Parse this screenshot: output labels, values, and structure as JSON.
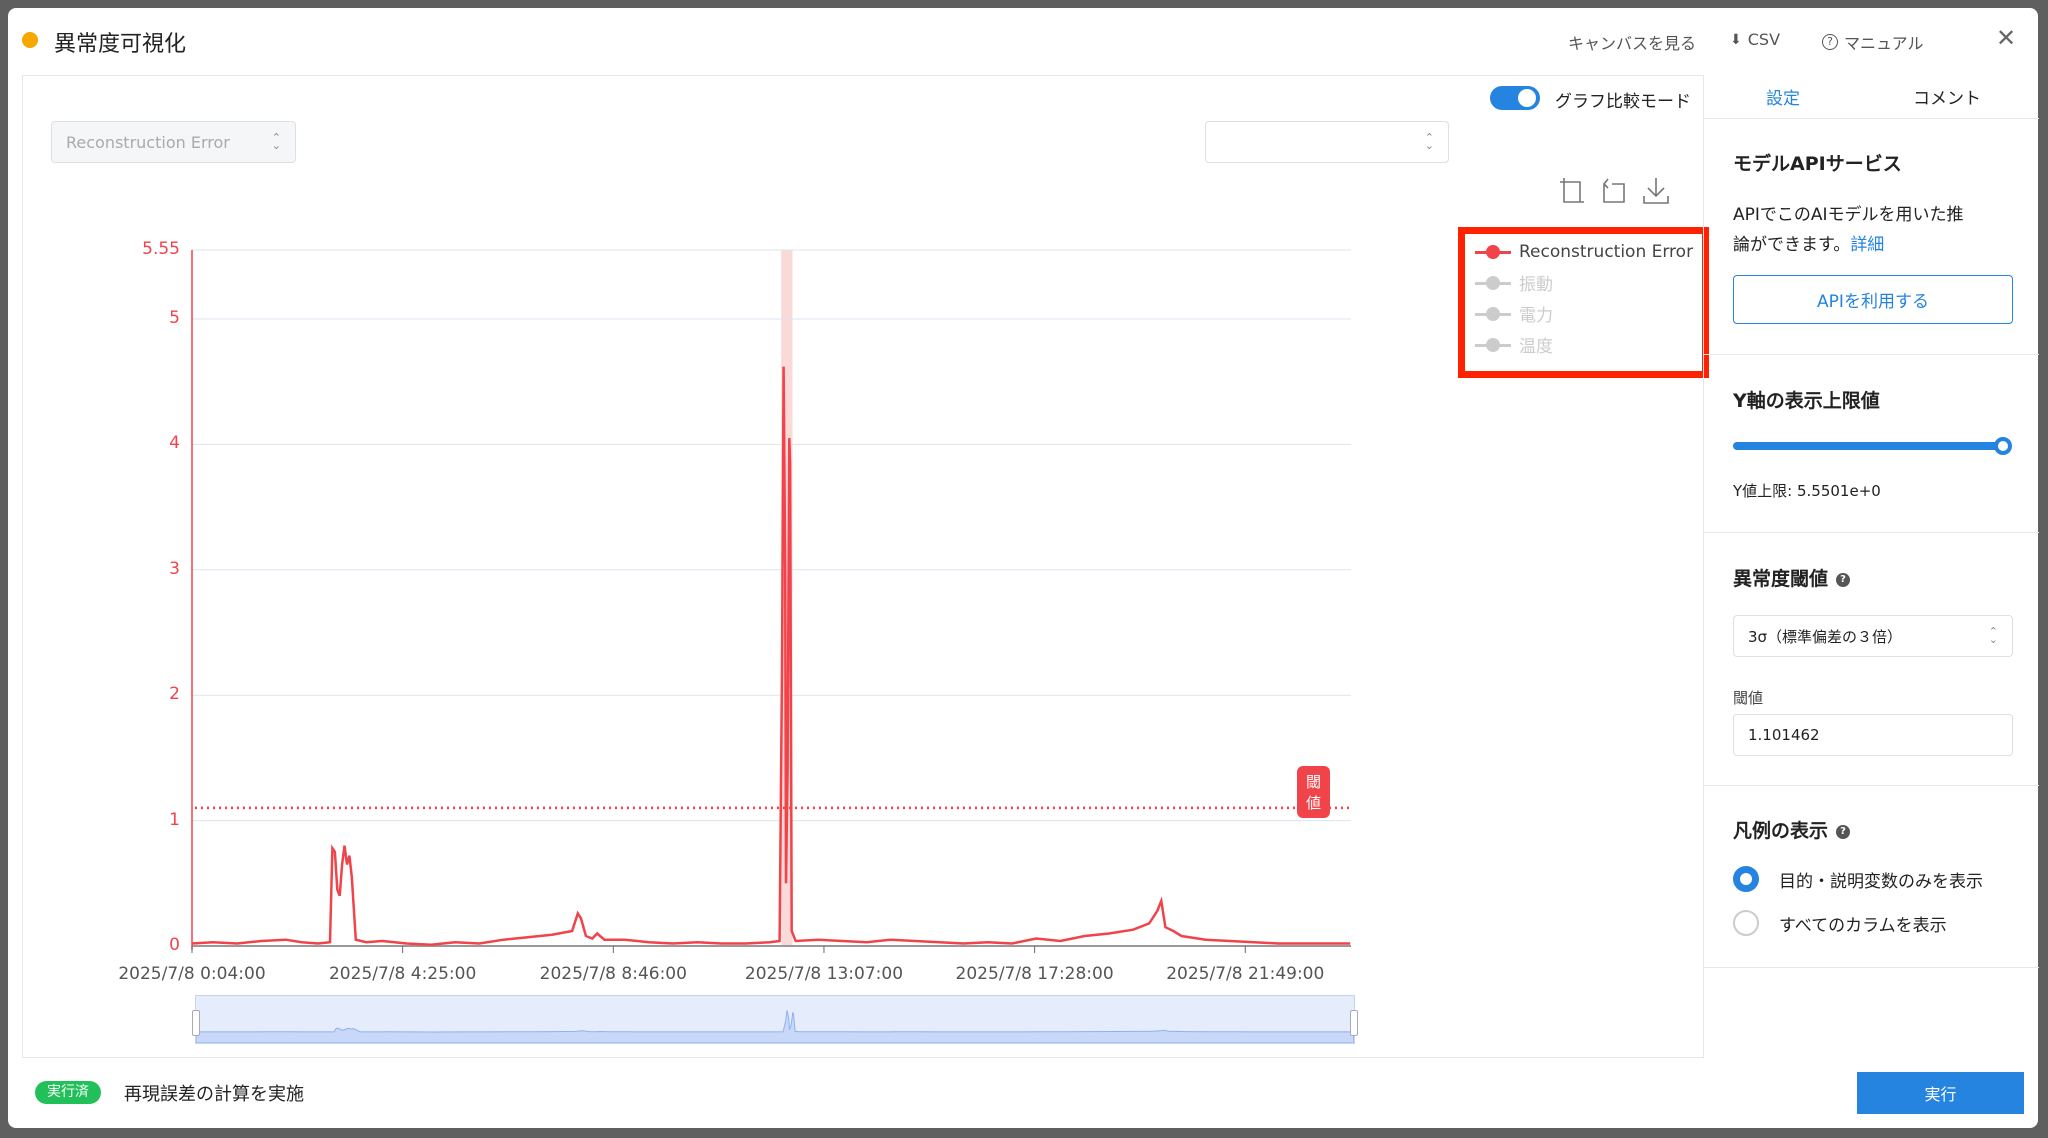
{
  "header": {
    "title": "異常度可視化",
    "status_color": "#f5a800",
    "links": {
      "canvas": "キャンバスを見る",
      "csv": "CSV",
      "manual": "マニュアル"
    }
  },
  "chart_controls": {
    "series_select": "Reconstruction Error",
    "compare_select": "",
    "compare_mode_label": "グラフ比較モード",
    "compare_mode_on": true
  },
  "legend": {
    "items": [
      {
        "label": "Reconstruction Error",
        "active": true,
        "color": "#f0434a"
      },
      {
        "label": "振動",
        "active": false,
        "color": "#cccccc"
      },
      {
        "label": "電力",
        "active": false,
        "color": "#cccccc"
      },
      {
        "label": "温度",
        "active": false,
        "color": "#cccccc"
      }
    ],
    "highlight_color": "#ff2200"
  },
  "chart_data": {
    "type": "line",
    "title": "",
    "xlabel": "",
    "ylabel": "",
    "date": "2025/7/8",
    "ylim": [
      0,
      5.55
    ],
    "yticks": [
      "0",
      "1",
      "2",
      "3",
      "4",
      "5",
      "5.55"
    ],
    "xtick_labels": [
      "2025/7/8 0:04:00",
      "2025/7/8 4:25:00",
      "2025/7/8 8:46:00",
      "2025/7/8 13:07:00",
      "2025/7/8 17:28:00",
      "2025/7/8 21:49:00"
    ],
    "xrange": [
      "00:04",
      "23:59"
    ],
    "grid": true,
    "threshold": {
      "value": 1.101462,
      "label": "閾値"
    },
    "anomaly_ranges": [
      [
        "12:14",
        "12:28"
      ]
    ],
    "series": [
      {
        "name": "Reconstruction Error",
        "color": "#f0434a",
        "points": [
          [
            "00:04",
            0.02
          ],
          [
            "00:30",
            0.03
          ],
          [
            "01:00",
            0.02
          ],
          [
            "01:30",
            0.04
          ],
          [
            "02:00",
            0.05
          ],
          [
            "02:20",
            0.03
          ],
          [
            "02:40",
            0.02
          ],
          [
            "02:55",
            0.03
          ],
          [
            "02:58",
            0.78
          ],
          [
            "03:01",
            0.75
          ],
          [
            "03:04",
            0.45
          ],
          [
            "03:07",
            0.4
          ],
          [
            "03:10",
            0.65
          ],
          [
            "03:13",
            0.8
          ],
          [
            "03:16",
            0.65
          ],
          [
            "03:19",
            0.72
          ],
          [
            "03:22",
            0.55
          ],
          [
            "03:27",
            0.05
          ],
          [
            "03:40",
            0.03
          ],
          [
            "04:00",
            0.04
          ],
          [
            "04:30",
            0.02
          ],
          [
            "05:00",
            0.01
          ],
          [
            "05:30",
            0.03
          ],
          [
            "06:00",
            0.02
          ],
          [
            "06:30",
            0.05
          ],
          [
            "07:00",
            0.07
          ],
          [
            "07:30",
            0.09
          ],
          [
            "07:55",
            0.12
          ],
          [
            "08:02",
            0.26
          ],
          [
            "08:06",
            0.22
          ],
          [
            "08:12",
            0.08
          ],
          [
            "08:20",
            0.06
          ],
          [
            "08:26",
            0.1
          ],
          [
            "08:35",
            0.05
          ],
          [
            "09:00",
            0.05
          ],
          [
            "09:30",
            0.03
          ],
          [
            "10:00",
            0.02
          ],
          [
            "10:30",
            0.03
          ],
          [
            "11:00",
            0.02
          ],
          [
            "11:30",
            0.02
          ],
          [
            "12:00",
            0.03
          ],
          [
            "12:12",
            0.04
          ],
          [
            "12:15",
            2.2
          ],
          [
            "12:17",
            4.62
          ],
          [
            "12:19",
            3.0
          ],
          [
            "12:20",
            0.5
          ],
          [
            "12:22",
            1.4
          ],
          [
            "12:24",
            4.05
          ],
          [
            "12:25",
            3.85
          ],
          [
            "12:27",
            0.12
          ],
          [
            "12:32",
            0.04
          ],
          [
            "13:00",
            0.05
          ],
          [
            "13:30",
            0.04
          ],
          [
            "14:00",
            0.03
          ],
          [
            "14:30",
            0.05
          ],
          [
            "15:00",
            0.04
          ],
          [
            "15:30",
            0.03
          ],
          [
            "16:00",
            0.02
          ],
          [
            "16:30",
            0.03
          ],
          [
            "17:00",
            0.02
          ],
          [
            "17:30",
            0.06
          ],
          [
            "18:00",
            0.04
          ],
          [
            "18:30",
            0.08
          ],
          [
            "19:00",
            0.1
          ],
          [
            "19:30",
            0.13
          ],
          [
            "19:50",
            0.18
          ],
          [
            "20:00",
            0.28
          ],
          [
            "20:05",
            0.36
          ],
          [
            "20:10",
            0.15
          ],
          [
            "20:20",
            0.12
          ],
          [
            "20:30",
            0.08
          ],
          [
            "21:00",
            0.05
          ],
          [
            "21:30",
            0.04
          ],
          [
            "22:00",
            0.03
          ],
          [
            "22:30",
            0.02
          ],
          [
            "23:00",
            0.02
          ],
          [
            "23:30",
            0.02
          ],
          [
            "23:59",
            0.02
          ]
        ]
      }
    ]
  },
  "right_panel": {
    "tabs": [
      {
        "label": "設定",
        "active": true
      },
      {
        "label": "コメント",
        "active": false
      }
    ],
    "api": {
      "title": "モデルAPIサービス",
      "desc_line1": "APIでこのAIモデルを用いた推",
      "desc_line2": "論ができます。",
      "detail_link": "詳細",
      "button": "APIを利用する"
    },
    "yaxis": {
      "title": "Y軸の表示上限値",
      "slider_value_percent": 100,
      "value_text": "Y値上限: 5.5501e+0"
    },
    "threshold": {
      "title": "異常度閾値",
      "method": "3σ（標準偏差の３倍）",
      "value_label": "閾値",
      "value": "1.101462"
    },
    "legend_display": {
      "title": "凡例の表示",
      "options": [
        {
          "label": "目的・説明変数のみを表示",
          "selected": true
        },
        {
          "label": "すべてのカラムを表示",
          "selected": false
        }
      ]
    }
  },
  "footer": {
    "badge": "実行済",
    "status_text": "再現誤差の計算を実施",
    "run_button": "実行"
  },
  "colors": {
    "accent": "#2584e0",
    "success": "#22c05a",
    "series": "#f0434a"
  }
}
